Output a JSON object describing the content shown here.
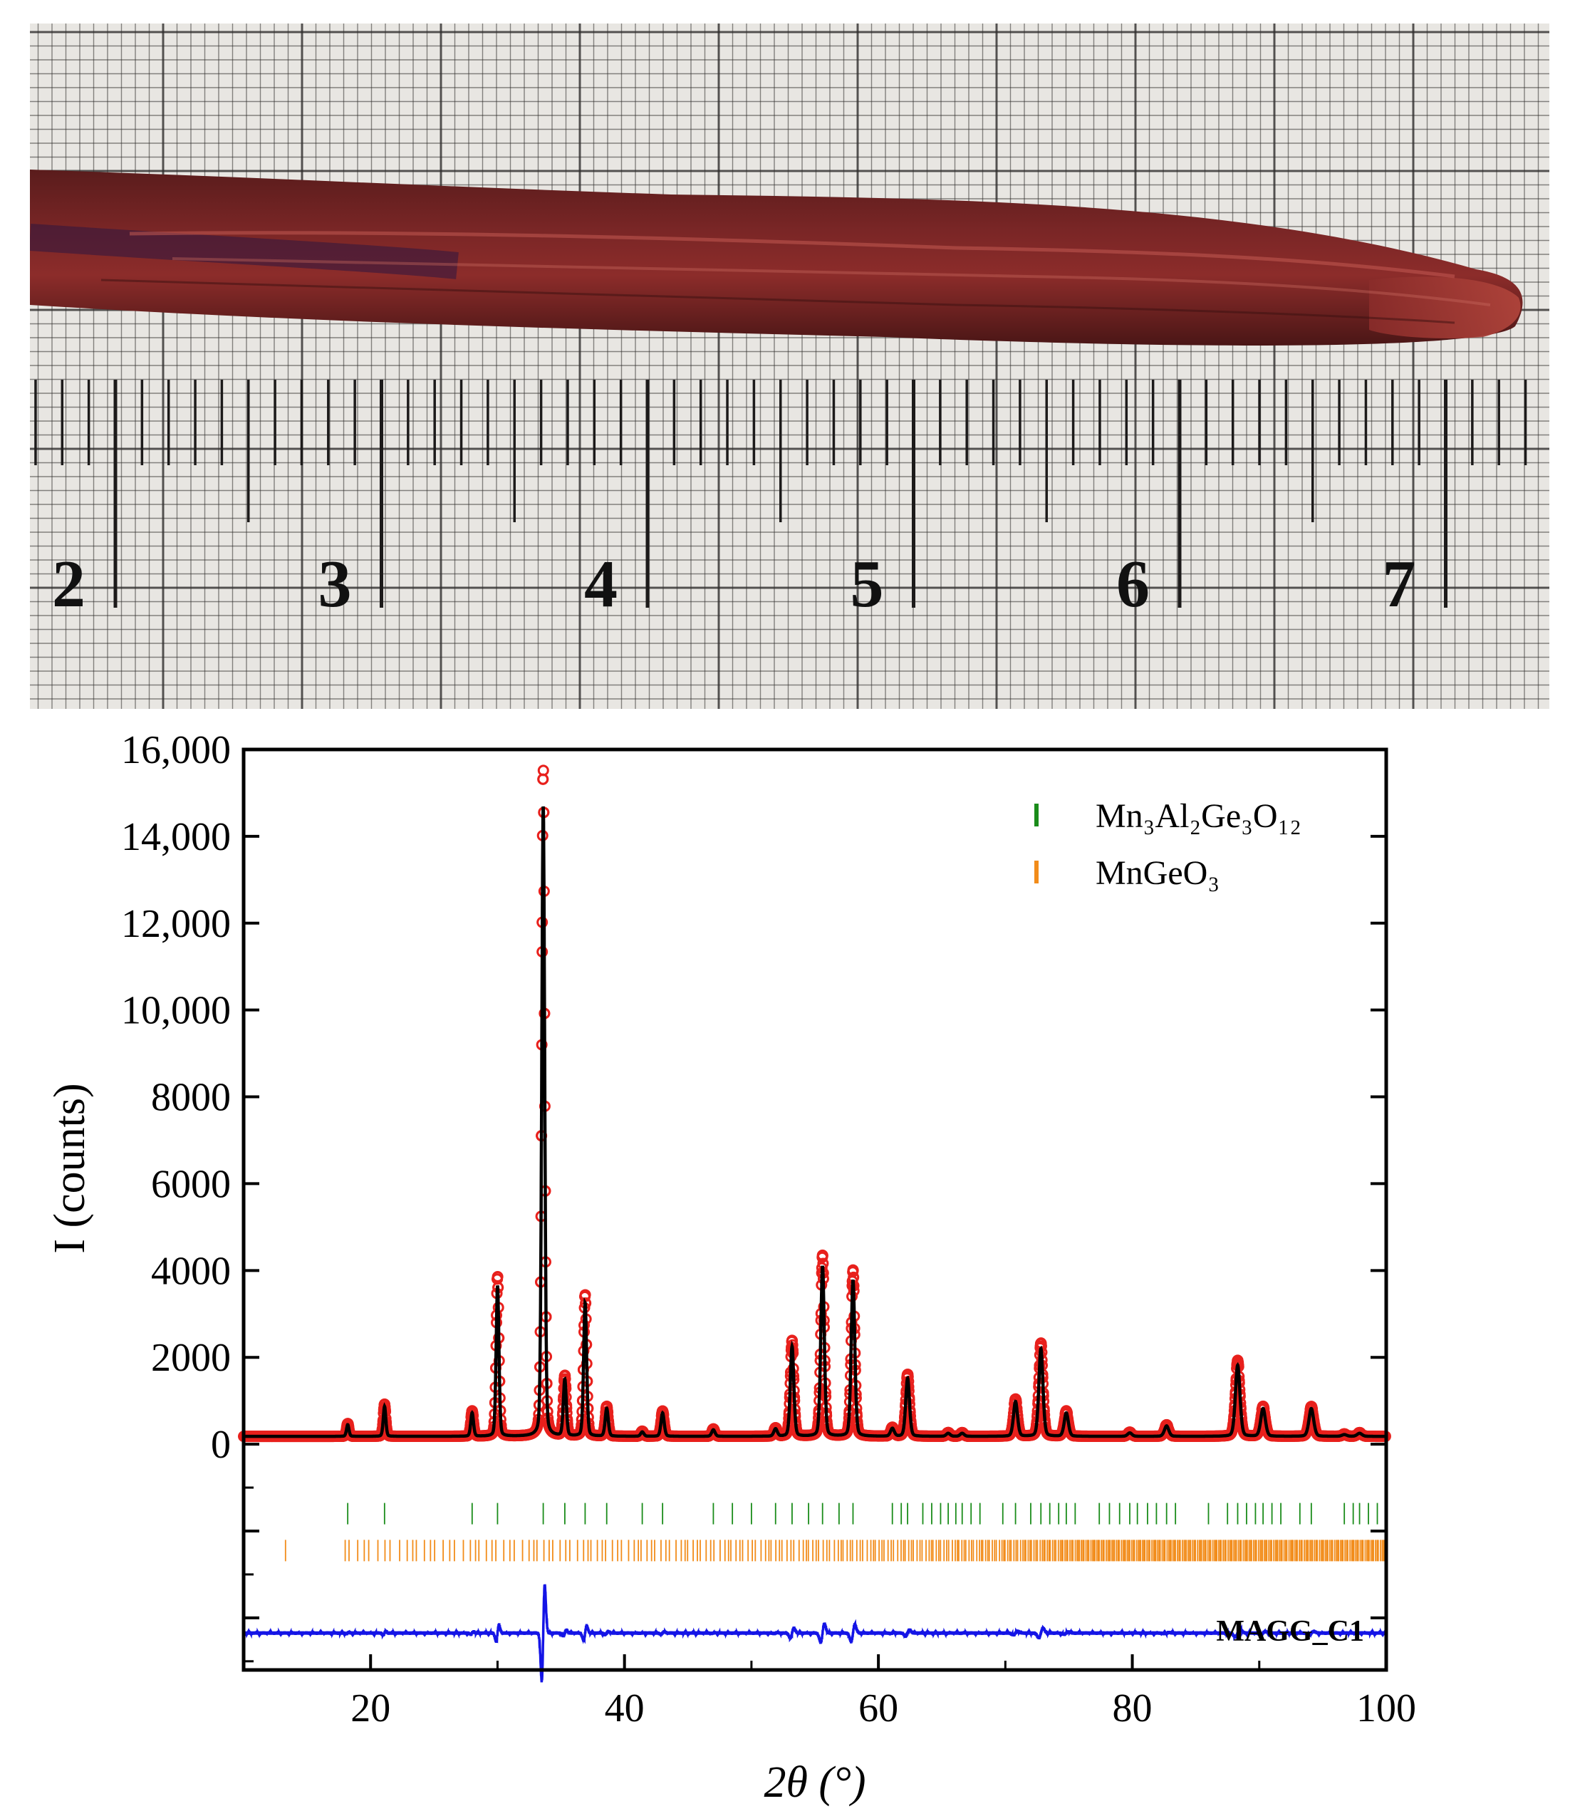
{
  "photo": {
    "ruler_numbers": [
      "2",
      "3",
      "4",
      "5",
      "6",
      "7"
    ],
    "colors": {
      "paper": "#e8e6e2",
      "grid_line": "#2f2d2c",
      "sample": "#6e2222",
      "sample_tip": "#a33a33"
    }
  },
  "chart_data": {
    "type": "scatter",
    "xlabel": "2θ (°)",
    "ylabel": "I (counts)",
    "xlim": [
      10,
      100
    ],
    "ylim": [
      -5200,
      16000
    ],
    "x_ticks": [
      "20",
      "40",
      "60",
      "80",
      "100"
    ],
    "y_ticks": [
      {
        "value": 0,
        "label": "0"
      },
      {
        "value": 2000,
        "label": "2000"
      },
      {
        "value": 4000,
        "label": "4000"
      },
      {
        "value": 6000,
        "label": "6000"
      },
      {
        "value": 8000,
        "label": "8000"
      },
      {
        "value": 10000,
        "label": "10,000"
      },
      {
        "value": 12000,
        "label": "12,000"
      },
      {
        "value": 14000,
        "label": "14,000"
      },
      {
        "value": 16000,
        "label": "16,000"
      }
    ],
    "sample_label": "MAGG_C1",
    "legend": {
      "placement": "top-right",
      "entries": [
        {
          "label": "Mn₃Al₂Ge₃O₁₂",
          "color": "#1a8c1a"
        },
        {
          "label": "MnGeO₃",
          "color": "#f28c1a"
        }
      ]
    },
    "background_counts": 180,
    "peaks": [
      {
        "x": 18.2,
        "y": 450
      },
      {
        "x": 21.1,
        "y": 870
      },
      {
        "x": 28.0,
        "y": 720
      },
      {
        "x": 30.0,
        "y": 3650
      },
      {
        "x": 33.6,
        "y": 14700
      },
      {
        "x": 35.3,
        "y": 1480
      },
      {
        "x": 36.9,
        "y": 3250
      },
      {
        "x": 38.6,
        "y": 820
      },
      {
        "x": 41.4,
        "y": 280
      },
      {
        "x": 43.0,
        "y": 720
      },
      {
        "x": 47.0,
        "y": 330
      },
      {
        "x": 51.9,
        "y": 350
      },
      {
        "x": 53.2,
        "y": 2250
      },
      {
        "x": 55.6,
        "y": 4100
      },
      {
        "x": 58.0,
        "y": 3780
      },
      {
        "x": 61.1,
        "y": 360
      },
      {
        "x": 62.3,
        "y": 1520
      },
      {
        "x": 65.5,
        "y": 250
      },
      {
        "x": 66.6,
        "y": 250
      },
      {
        "x": 70.8,
        "y": 980
      },
      {
        "x": 72.8,
        "y": 2200
      },
      {
        "x": 74.8,
        "y": 720
      },
      {
        "x": 79.8,
        "y": 260
      },
      {
        "x": 82.7,
        "y": 420
      },
      {
        "x": 88.3,
        "y": 1820
      },
      {
        "x": 90.3,
        "y": 820
      },
      {
        "x": 94.1,
        "y": 820
      },
      {
        "x": 96.7,
        "y": 220
      },
      {
        "x": 97.9,
        "y": 250
      }
    ],
    "series": [
      {
        "role": "observed",
        "marker": "open-circle",
        "color": "#e8201c"
      },
      {
        "role": "calculated",
        "line": "solid",
        "color": "#000000"
      },
      {
        "role": "difference",
        "line": "solid",
        "color": "#1414e6",
        "offset_counts": -4350
      }
    ],
    "reflections": [
      {
        "phase": "Mn₃Al₂Ge₃O₁₂",
        "color": "#1a8c1a",
        "y_counts": -1600,
        "positions": [
          18.2,
          21.1,
          28.0,
          30.0,
          33.6,
          35.3,
          36.9,
          38.6,
          41.4,
          43.0,
          47.0,
          48.5,
          50.0,
          51.9,
          53.2,
          54.5,
          55.6,
          56.9,
          58.0,
          61.1,
          61.8,
          62.3,
          63.5,
          64.2,
          64.9,
          65.5,
          66.1,
          66.6,
          67.3,
          68.0,
          69.8,
          70.8,
          72.0,
          72.8,
          73.5,
          74.2,
          74.8,
          75.5,
          77.4,
          78.2,
          79.0,
          79.8,
          80.4,
          81.2,
          81.9,
          82.7,
          83.4,
          86.0,
          87.5,
          88.3,
          89.0,
          89.7,
          90.3,
          91.0,
          91.7,
          93.2,
          94.1,
          96.7,
          97.4,
          97.9,
          98.6,
          99.3
        ]
      },
      {
        "phase": "MnGeO₃",
        "color": "#f28c1a",
        "y_counts": -2450,
        "range": [
          18.0,
          100
        ],
        "isolated_positions": [
          13.3
        ],
        "spacing_start": 0.55,
        "spacing_end": 0.12
      }
    ]
  }
}
